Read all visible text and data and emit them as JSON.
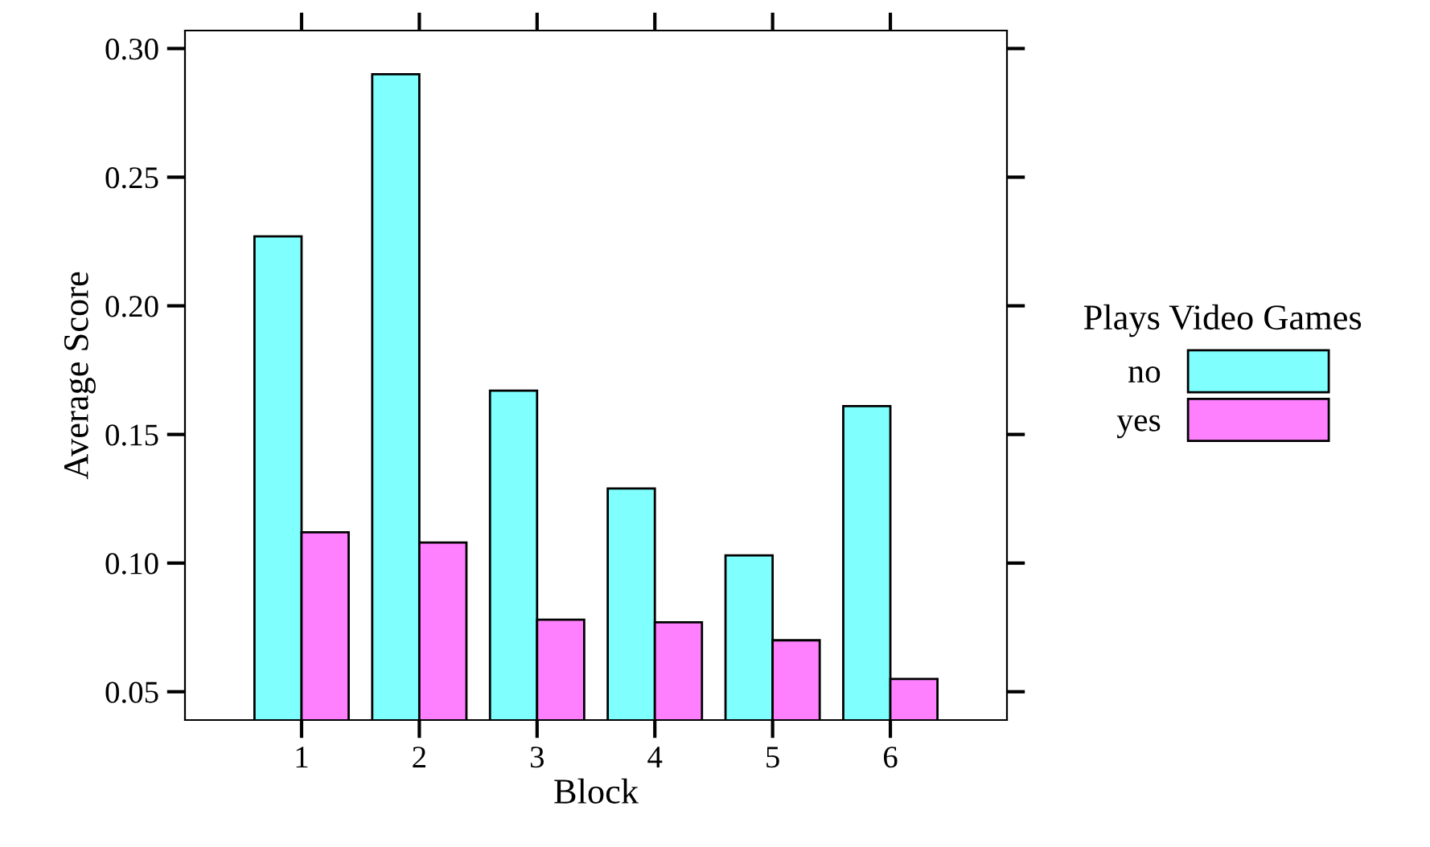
{
  "chart_data": {
    "type": "bar",
    "xlabel": "Block",
    "ylabel": "Average Score",
    "legend_title": "Plays Video Games",
    "categories": [
      "1",
      "2",
      "3",
      "4",
      "5",
      "6"
    ],
    "series": [
      {
        "name": "no",
        "color": "#80ffff",
        "values": [
          0.227,
          0.29,
          0.167,
          0.129,
          0.103,
          0.161
        ]
      },
      {
        "name": "yes",
        "color": "#ff80ff",
        "values": [
          0.112,
          0.108,
          0.078,
          0.077,
          0.07,
          0.055
        ]
      }
    ],
    "ylim": [
      0.039,
      0.307
    ],
    "yticks": [
      {
        "value": 0.05,
        "label": "0.05"
      },
      {
        "value": 0.1,
        "label": "0.10"
      },
      {
        "value": 0.15,
        "label": "0.15"
      },
      {
        "value": 0.2,
        "label": "0.20"
      },
      {
        "value": 0.25,
        "label": "0.25"
      },
      {
        "value": 0.3,
        "label": "0.30"
      }
    ],
    "grid": false,
    "legend": "right"
  }
}
